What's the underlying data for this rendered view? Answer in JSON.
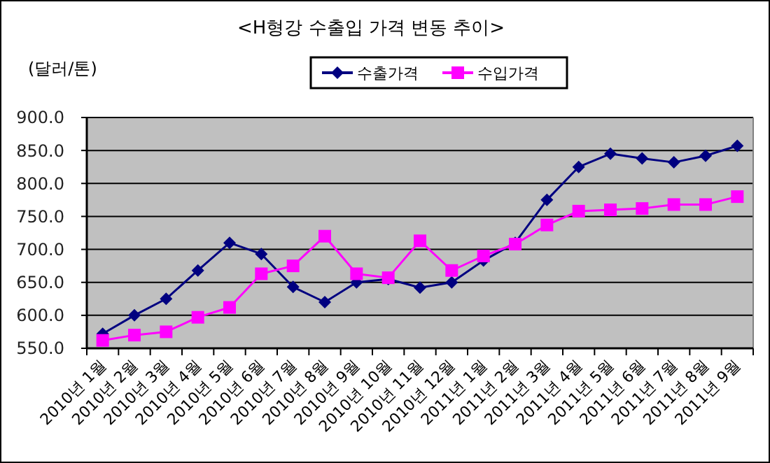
{
  "chart_data": {
    "type": "line",
    "title": "<H형강 수출입 가격 변동 추이>",
    "ylabel": "(달러/톤)",
    "categories": [
      "2010년 1월",
      "2010년 2월",
      "2010년 3월",
      "2010년 4월",
      "2010년 5월",
      "2010년 6월",
      "2010년 7월",
      "2010년 8월",
      "2010년 9월",
      "2010년 10월",
      "2010년 11월",
      "2010년 12월",
      "2011년 1월",
      "2011년 2월",
      "2011년 3월",
      "2011년 4월",
      "2011년 5월",
      "2011년 6월",
      "2011년 7월",
      "2011년 8월",
      "2011년 9월"
    ],
    "series": [
      {
        "name": "수출가격",
        "color": "#000080",
        "marker": "diamond",
        "values": [
          572,
          600,
          625,
          668,
          710,
          693,
          643,
          620,
          650,
          655,
          642,
          650,
          683,
          710,
          775,
          825,
          845,
          838,
          832,
          842,
          857
        ]
      },
      {
        "name": "수입가격",
        "color": "#ff00ff",
        "marker": "square",
        "values": [
          562,
          570,
          575,
          597,
          612,
          663,
          675,
          720,
          663,
          657,
          713,
          668,
          690,
          708,
          737,
          758,
          760,
          762,
          768,
          768,
          780
        ]
      }
    ],
    "ylim": [
      550,
      900
    ],
    "yticks": [
      {
        "value": 550,
        "label": "550.0"
      },
      {
        "value": 600,
        "label": "600.0"
      },
      {
        "value": 650,
        "label": "650.0"
      },
      {
        "value": 700,
        "label": "700.0"
      },
      {
        "value": 750,
        "label": "750.0"
      },
      {
        "value": 800,
        "label": "800.0"
      },
      {
        "value": 850,
        "label": "850.0"
      },
      {
        "value": 900,
        "label": "900.0"
      }
    ],
    "grid": "y",
    "legend": "top",
    "line_style": "solid"
  }
}
